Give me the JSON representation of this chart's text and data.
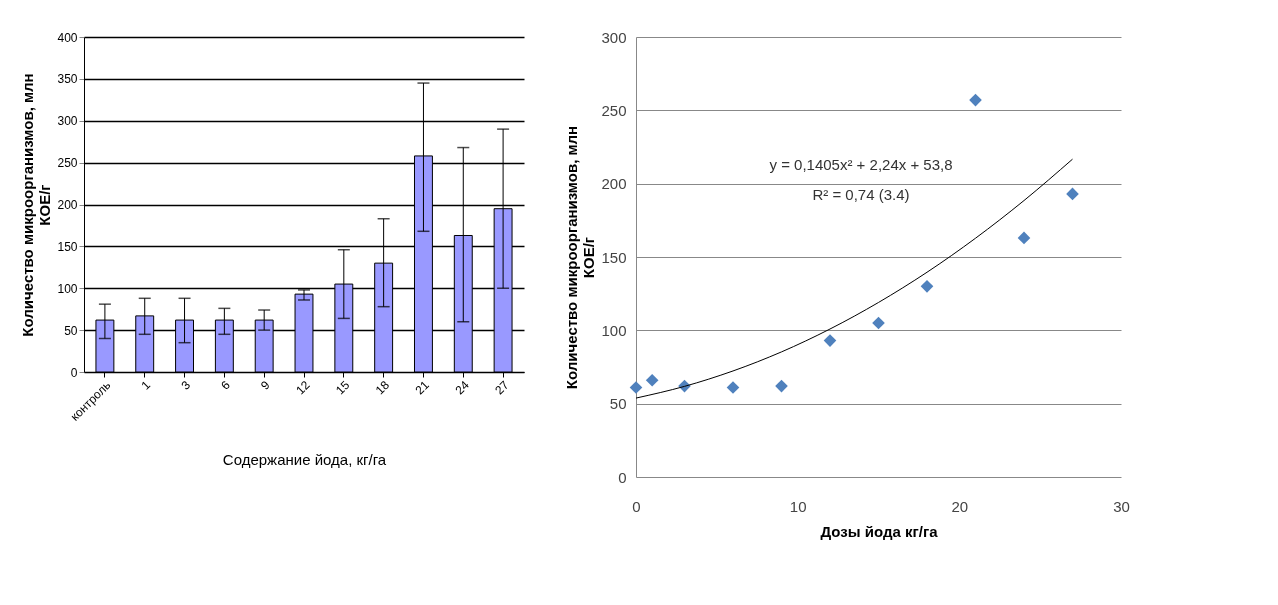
{
  "chart_data": [
    {
      "type": "bar",
      "categories": [
        "контроль",
        "1",
        "3",
        "6",
        "9",
        "12",
        "15",
        "18",
        "21",
        "24",
        "27"
      ],
      "values": [
        62,
        67,
        62,
        62,
        62,
        93,
        105,
        130,
        258,
        163,
        195
      ],
      "errors": [
        [
          40,
          81
        ],
        [
          45,
          88
        ],
        [
          35,
          88
        ],
        [
          45,
          76
        ],
        [
          50,
          74
        ],
        [
          86,
          98
        ],
        [
          64,
          146
        ],
        [
          78,
          183
        ],
        [
          168,
          345
        ],
        [
          60,
          268
        ],
        [
          100,
          290
        ]
      ],
      "color": "#9999ff",
      "xlabel": "Содержание йода, кг/га",
      "ylabel": "Количество микроорганизмов, млн КОЕ/г",
      "ylim": [
        0,
        400
      ],
      "yticks": [
        0,
        50,
        100,
        150,
        200,
        250,
        300,
        350,
        400
      ],
      "grid": "y"
    },
    {
      "type": "scatter",
      "xlabel": "Дозы йода кг/га",
      "ylabel": "Количество микроорганизмов, млн КОЕ/г",
      "series": [
        {
          "type": "scatter",
          "color": "#4f81bd",
          "marker": "diamond",
          "x": [
            0,
            1,
            3,
            6,
            9,
            12,
            15,
            18,
            21,
            24,
            27
          ],
          "values": [
            61,
            66,
            62,
            61,
            62,
            93,
            105,
            130,
            257,
            163,
            193
          ]
        },
        {
          "type": "line",
          "color": "#000000",
          "marker": "none",
          "x": [
            0,
            3,
            6,
            9,
            12,
            15,
            18,
            21,
            24,
            27
          ],
          "values": [
            53.8,
            61.8,
            72.3,
            85.3,
            100.9,
            119.0,
            139.6,
            162.8,
            188.5,
            216.7
          ]
        }
      ],
      "annotations": [
        "y = 0,1405x² + 2,24x + 53,8",
        "R² = 0,74 (3.4)"
      ],
      "xlim": [
        0,
        30
      ],
      "xticks": [
        0,
        10,
        20,
        30
      ],
      "ylim": [
        0,
        300
      ],
      "yticks": [
        0,
        50,
        100,
        150,
        200,
        250,
        300
      ],
      "grid": "y"
    }
  ]
}
